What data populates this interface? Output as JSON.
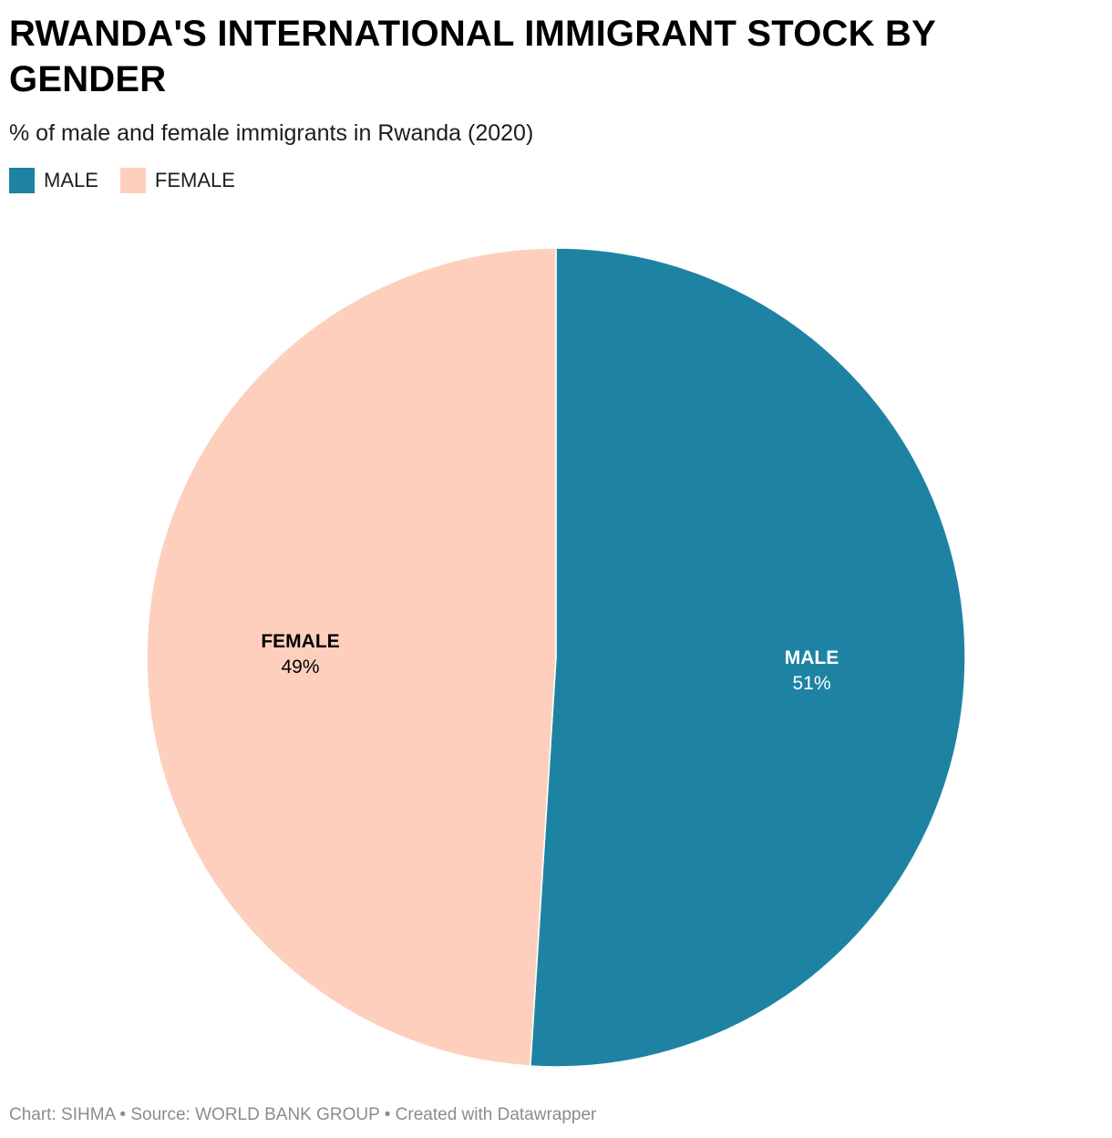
{
  "chart_data": {
    "type": "pie",
    "title": "RWANDA'S INTERNATIONAL IMMIGRANT STOCK BY GENDER",
    "subtitle": "% of male and female immigrants in Rwanda (2020)",
    "legend_position": "top-left",
    "slices": [
      {
        "label": "MALE",
        "value": 51,
        "value_label": "51%",
        "color": "#1e83a3",
        "text_color": "#ffffff"
      },
      {
        "label": "FEMALE",
        "value": 49,
        "value_label": "49%",
        "color": "#fecfbd",
        "text_color": "#000000"
      }
    ],
    "legend": [
      {
        "label": "MALE",
        "color": "#1e83a3"
      },
      {
        "label": "FEMALE",
        "color": "#fecfbd"
      }
    ]
  },
  "footer": {
    "text": "Chart: SIHMA • Source: WORLD BANK GROUP • Created with Datawrapper"
  }
}
